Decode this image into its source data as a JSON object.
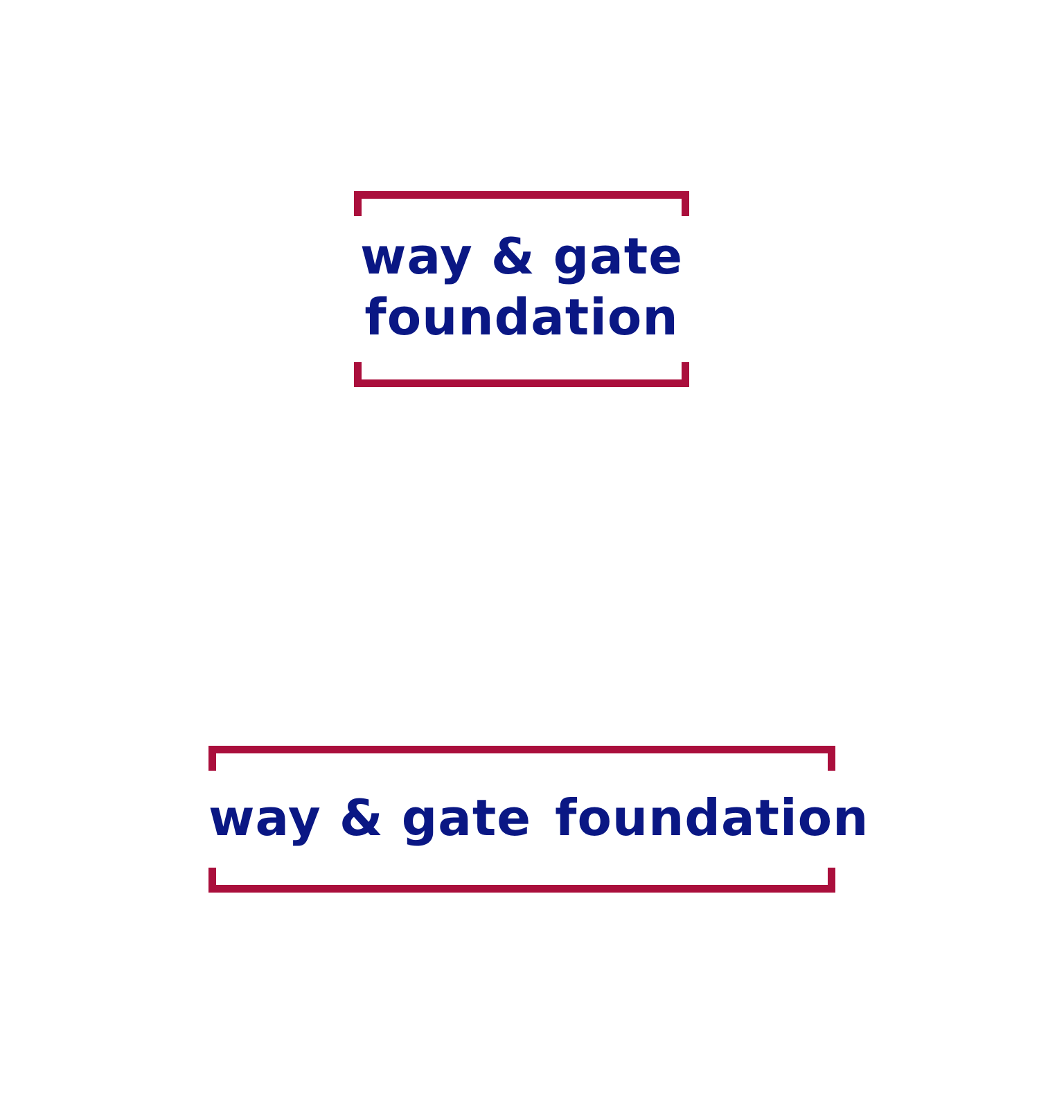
{
  "colors": {
    "bracket": "#aa0f3c",
    "text": "#0a1784",
    "background": "#ffffff"
  },
  "logo_stacked": {
    "line1": "way & gate",
    "line2": "foundation"
  },
  "logo_horizontal": {
    "part1": "way & gate",
    "part2": "foundation"
  }
}
